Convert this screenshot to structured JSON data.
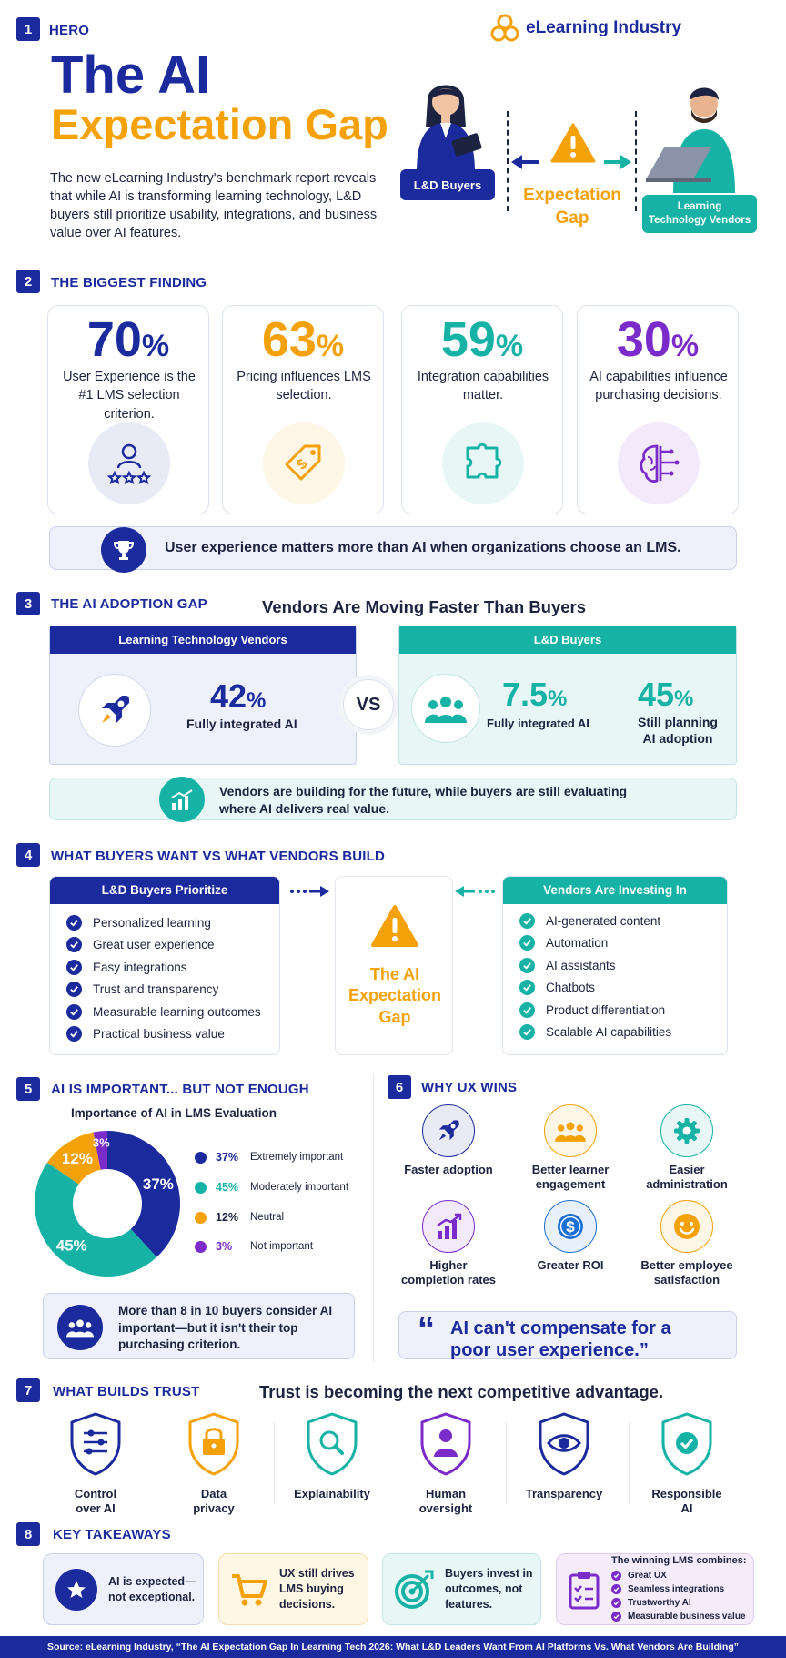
{
  "brand": {
    "name": "eLearning Industry"
  },
  "hero": {
    "num": "1",
    "tag": "HERO",
    "title_line1": "The AI",
    "title_line2": "Expectation Gap",
    "description": "The new eLearning Industry's benchmark report reveals that while AI is transforming learning technology, L&D buyers still prioritize usability, integrations, and business value over AI features.",
    "left_badge": "L&D Buyers",
    "gap_line1": "Expectation",
    "gap_line2": "Gap",
    "right_badge_line1": "Learning",
    "right_badge_line2": "Technology Vendors"
  },
  "finding": {
    "num": "2",
    "title": "THE BIGGEST FINDING",
    "stats": [
      {
        "value": "70",
        "unit": "%",
        "label": "User Experience is the #1 LMS selection criterion.",
        "icon": "user-rating-icon",
        "color": "#1b2a9c"
      },
      {
        "value": "63",
        "unit": "%",
        "label": "Pricing influences LMS selection.",
        "icon": "price-tag-icon",
        "color": "#f5a20a"
      },
      {
        "value": "59",
        "unit": "%",
        "label": "Integration capabilities matter.",
        "icon": "puzzle-icon",
        "color": "#17b2a6"
      },
      {
        "value": "30",
        "unit": "%",
        "label": "AI capabilities influence purchasing decisions.",
        "icon": "brain-circuit-icon",
        "color": "#7a2bc9"
      }
    ],
    "banner": "User experience matters more than AI when organizations choose an LMS."
  },
  "adoption": {
    "num": "3",
    "title": "THE AI ADOPTION GAP",
    "headline": "Vendors Are Moving Faster Than Buyers",
    "vendors_header": "Learning Technology Vendors",
    "vendors_value": "42",
    "vendors_unit": "%",
    "vendors_label": "Fully integrated AI",
    "vs": "VS",
    "buyers_header": "L&D Buyers",
    "buyers_value1": "7.5",
    "buyers_unit1": "%",
    "buyers_label1": "Fully integrated AI",
    "buyers_value2": "45",
    "buyers_unit2": "%",
    "buyers_label2_line1": "Still planning",
    "buyers_label2_line2": "AI adoption",
    "note_line1": "Vendors are building for the future, while buyers are still evaluating",
    "note_line2": "where AI delivers real value."
  },
  "wants": {
    "num": "4",
    "title": "WHAT BUYERS WANT VS WHAT VENDORS BUILD",
    "buyers_header": "L&D Buyers Prioritize",
    "buyers_items": [
      "Personalized learning",
      "Great user experience",
      "Easy integrations",
      "Trust and transparency",
      "Measurable learning outcomes",
      "Practical business value"
    ],
    "gap_line1": "The AI",
    "gap_line2": "Expectation",
    "gap_line3": "Gap",
    "vendors_header": "Vendors Are Investing In",
    "vendors_items": [
      "AI-generated content",
      "Automation",
      "AI assistants",
      "Chatbots",
      "Product differentiation",
      "Scalable AI capabilities"
    ]
  },
  "importance": {
    "num": "5",
    "title": "AI IS IMPORTANT... BUT NOT ENOUGH",
    "subtitle": "Importance of AI in LMS Evaluation",
    "note": "More than 8 in 10 buyers consider AI important—but it isn't their top purchasing criterion."
  },
  "chart_data": {
    "type": "pie",
    "title": "Importance of AI in LMS Evaluation",
    "categories": [
      "Extremely important",
      "Moderately important",
      "Neutral",
      "Not important"
    ],
    "values": [
      37,
      45,
      12,
      3
    ],
    "labels": [
      "37%",
      "45%",
      "12%",
      "3%"
    ],
    "colors": [
      "#1b2a9c",
      "#17b2a6",
      "#f5a20a",
      "#7a2bc9"
    ],
    "legend": "right"
  },
  "ux": {
    "num": "6",
    "title": "WHY UX WINS",
    "items": [
      {
        "label": "Faster adoption",
        "icon": "rocket-icon",
        "color": "#1b2a9c"
      },
      {
        "label": "Better learner engagement",
        "icon": "group-icon",
        "color": "#f5a20a"
      },
      {
        "label": "Easier administration",
        "icon": "gear-icon",
        "color": "#17b2a6"
      },
      {
        "label": "Higher completion rates",
        "icon": "bar-chart-icon",
        "color": "#7a2bc9"
      },
      {
        "label": "Greater ROI",
        "icon": "dollar-icon",
        "color": "#1b6fd6"
      },
      {
        "label": "Better employee satisfaction",
        "icon": "smile-icon",
        "color": "#f5a20a"
      }
    ],
    "quote_mark": "“",
    "quote_line1": "AI can't compensate for a",
    "quote_line2": "poor user experience.”"
  },
  "trust": {
    "num": "7",
    "title": "WHAT BUILDS TRUST",
    "headline": "Trust is becoming the next competitive advantage.",
    "items": [
      {
        "line1": "Control",
        "line2": "over AI",
        "icon": "sliders-shield-icon",
        "color": "#1b2a9c"
      },
      {
        "line1": "Data",
        "line2": "privacy",
        "icon": "lock-shield-icon",
        "color": "#f5a20a"
      },
      {
        "line1": "Explainability",
        "line2": "",
        "icon": "magnifier-shield-icon",
        "color": "#17b2a6"
      },
      {
        "line1": "Human",
        "line2": "oversight",
        "icon": "person-shield-icon",
        "color": "#7a2bc9"
      },
      {
        "line1": "Transparency",
        "line2": "",
        "icon": "eye-shield-icon",
        "color": "#1b2a9c"
      },
      {
        "line1": "Responsible",
        "line2": "AI",
        "icon": "check-shield-icon",
        "color": "#17b2a6"
      }
    ]
  },
  "takeaways": {
    "num": "8",
    "title": "KEY TAKEAWAYS",
    "t1": "AI is expected—not exceptional.",
    "t2": "UX still drives LMS buying decisions.",
    "t3": "Buyers invest in outcomes, not features.",
    "t4_title": "The winning LMS combines:",
    "t4_items": [
      "Great UX",
      "Seamless integrations",
      "Trustworthy AI",
      "Measurable business value"
    ]
  },
  "footer": {
    "source": "Source: eLearning Industry, “The AI Expectation Gap In Learning Tech 2026: What L&D Leaders Want From AI Platforms Vs. What Vendors Are Building”"
  }
}
